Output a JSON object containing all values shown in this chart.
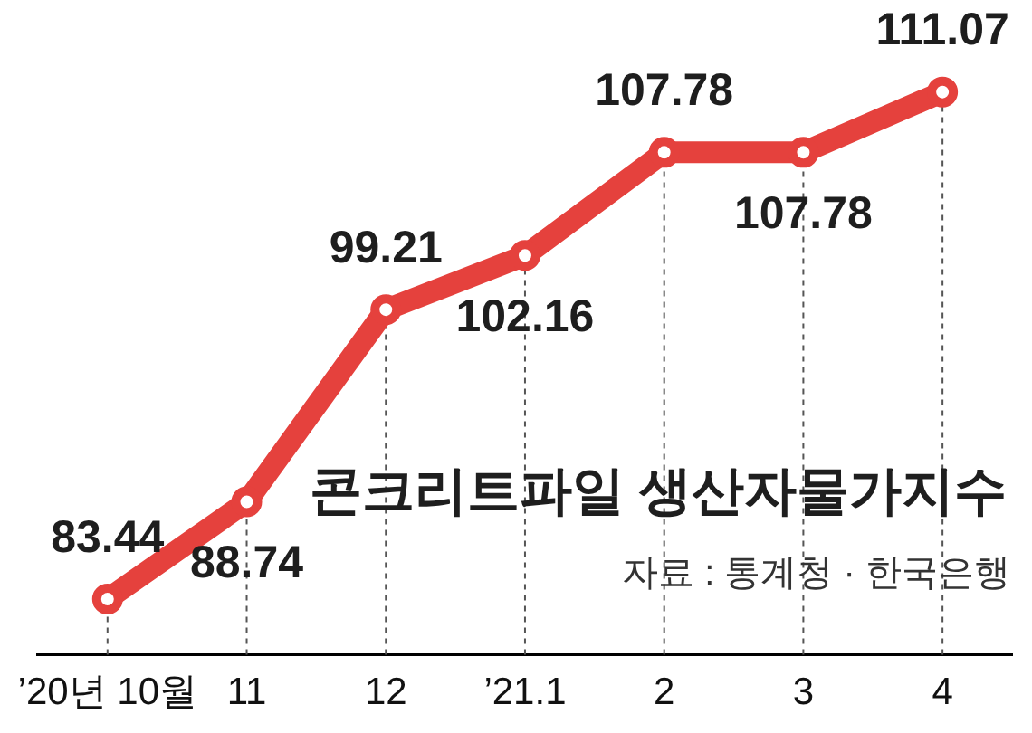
{
  "chart_data": {
    "type": "line",
    "title": "콘크리트파일 생산자물가지수",
    "annotations": [
      "자료 : 통계청 · 한국은행"
    ],
    "categories": [
      "’20년 10월",
      "11",
      "12",
      "’21.1",
      "2",
      "3",
      "4"
    ],
    "values": [
      83.44,
      88.74,
      99.21,
      102.16,
      107.78,
      107.78,
      111.07
    ],
    "color": "#e5413d",
    "tick_labels": "x",
    "data_labels": true,
    "grid": "x",
    "marker": "circle",
    "line_style": "solid",
    "legend": false
  }
}
